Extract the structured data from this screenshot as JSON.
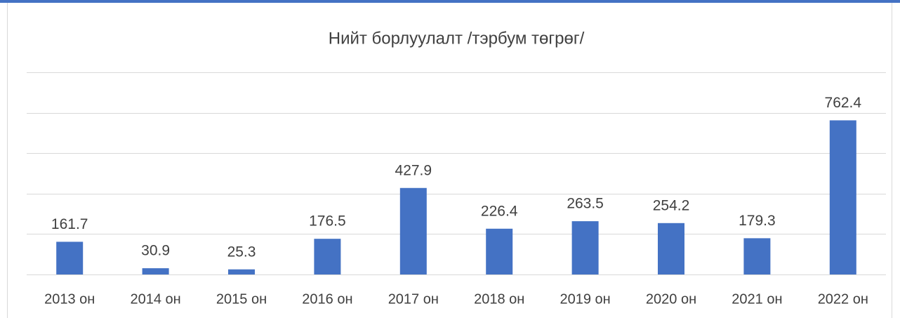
{
  "chart_data": {
    "type": "bar",
    "title": "Нийт борлуулалт /тэрбум төгрөг/",
    "categories": [
      "2013 он",
      "2014 он",
      "2015 он",
      "2016 он",
      "2017 он",
      "2018 он",
      "2019 он",
      "2020 он",
      "2021 он",
      "2022 он"
    ],
    "values": [
      161.7,
      30.9,
      25.3,
      176.5,
      427.9,
      226.4,
      263.5,
      254.2,
      179.3,
      762.4
    ],
    "color": "#4472c4",
    "ylim": [
      0,
      1000
    ],
    "yticks": [
      0,
      200,
      400,
      600,
      800,
      1000
    ],
    "grid": true
  }
}
